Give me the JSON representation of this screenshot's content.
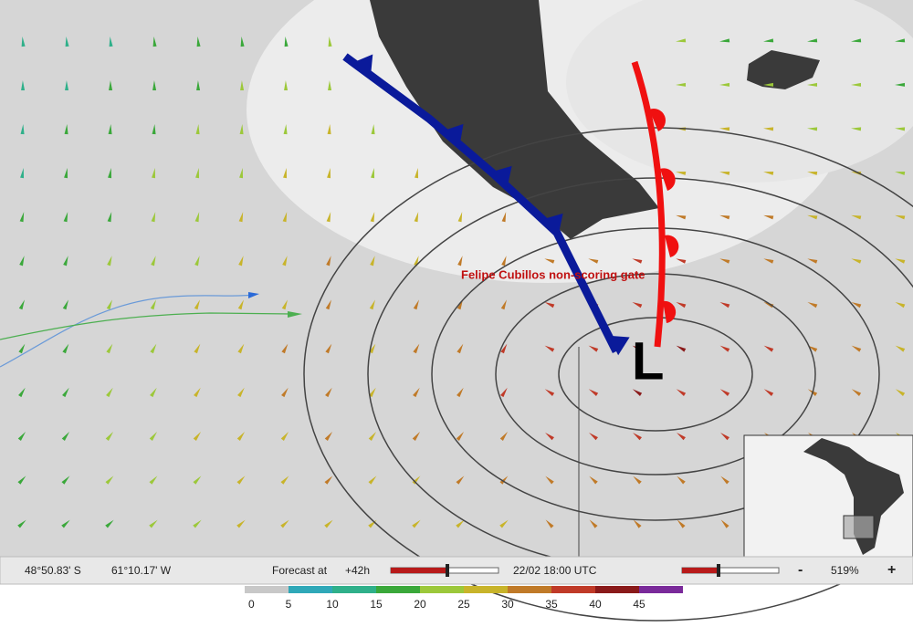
{
  "map": {
    "gate_label": "Felipe Cubillos non-scoring gate",
    "low_label": "L"
  },
  "status_bar": {
    "latitude": "48°50.83' S",
    "longitude": "61°10.17' W",
    "forecast_label": "Forecast at",
    "forecast_offset": "+42h",
    "forecast_time": "22/02 18:00 UTC",
    "zoom_out": "-",
    "zoom": "519%",
    "zoom_in": "+"
  },
  "wind_legend": {
    "stops": [
      {
        "value": 0,
        "color": "#c8c8c8"
      },
      {
        "value": 5,
        "color": "#2fa8b8"
      },
      {
        "value": 10,
        "color": "#2fb08a"
      },
      {
        "value": 15,
        "color": "#3aa83a"
      },
      {
        "value": 20,
        "color": "#9cc83a"
      },
      {
        "value": 25,
        "color": "#c8b42a"
      },
      {
        "value": 30,
        "color": "#c07a28"
      },
      {
        "value": 35,
        "color": "#c03a28"
      },
      {
        "value": 40,
        "color": "#8a1a1a"
      },
      {
        "value": 45,
        "color": "#7a2a9a"
      }
    ]
  }
}
